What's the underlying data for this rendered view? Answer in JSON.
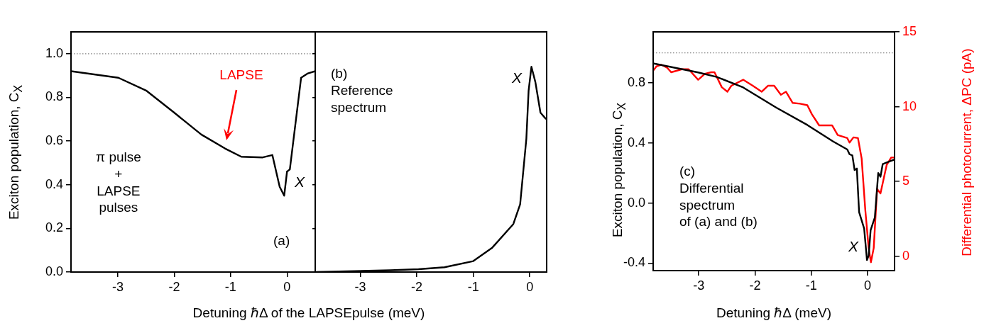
{
  "chart_data": [
    {
      "type": "line",
      "xlabel": "Detuning ℏΔ of the LAPSEpulse (meV)",
      "ylabel": "Exciton population, C$_{X}$",
      "xlim": [
        -3.83,
        0.5
      ],
      "ylim": [
        0,
        1.1
      ],
      "xticks": [
        -3,
        -2,
        -1,
        0
      ],
      "yticks": [
        {
          "value": 0,
          "label": "0.0"
        },
        {
          "value": 0.2,
          "label": "0.2"
        },
        {
          "value": 0.4,
          "label": "0.4"
        },
        {
          "value": 0.6,
          "label": "0.6"
        },
        {
          "value": 0.8,
          "label": "0.8"
        },
        {
          "value": 1,
          "label": "1.0"
        }
      ],
      "grid": false,
      "legend": false,
      "series": [
        {
          "color": "#000000",
          "x": [
            -3.83,
            -2.99,
            -2.49,
            -2.0,
            -1.52,
            -1.1,
            -0.81,
            -0.43,
            -0.26,
            -0.13,
            -0.05,
            0,
            0.05,
            0.25,
            0.37,
            0.5
          ],
          "values": [
            0.92,
            0.89,
            0.83,
            0.73,
            0.63,
            0.566,
            0.528,
            0.525,
            0.536,
            0.39,
            0.35,
            0.46,
            0.47,
            0.89,
            0.91,
            0.92
          ]
        }
      ],
      "ref_lines": [
        {
          "axis": "y",
          "value": 1,
          "line_style": "dotted",
          "color": "#808080"
        }
      ],
      "annotations": [
        "π pulse\n+\nLAPSE\npulses",
        "(a)",
        "LAPSE",
        "X"
      ]
    },
    {
      "type": "line",
      "xlim": [
        -3.8,
        0.3
      ],
      "ylim": [
        0,
        1.1
      ],
      "xticks": [
        -3,
        -2,
        -1,
        0
      ],
      "yticks": [
        0,
        0.2,
        0.4,
        0.6,
        0.8,
        1
      ],
      "tick_labels": "x",
      "grid": false,
      "legend": false,
      "series": [
        {
          "color": "#000000",
          "x": [
            -3.8,
            -2.47,
            -1.97,
            -1.51,
            -1.0,
            -0.67,
            -0.29,
            -0.17,
            -0.06,
            -0.02,
            0.03,
            0.1,
            0.19,
            0.29
          ],
          "values": [
            0.0,
            0.008,
            0.013,
            0.022,
            0.05,
            0.11,
            0.22,
            0.31,
            0.61,
            0.83,
            0.94,
            0.87,
            0.73,
            0.7
          ]
        }
      ],
      "annotations": [
        "(b)\nReference\nspectrum",
        "X"
      ]
    },
    {
      "type": "line",
      "xlabel": "Detuning ℏΔ  (meV)",
      "ylabel": "Exciton population, C$_{X}$",
      "y2label": "Differential photocurrent, ΔPC (pA)",
      "xlim": [
        -3.81,
        0.48
      ],
      "ylim": [
        -0.45,
        1.14
      ],
      "y2lim": [
        -0.96,
        15
      ],
      "xticks": [
        -3,
        -2,
        -1,
        0
      ],
      "yticks": [
        {
          "value": -0.4,
          "label": "-0.4"
        },
        {
          "value": 0,
          "label": "0.0"
        },
        {
          "value": 0.4,
          "label": "0.4"
        },
        {
          "value": 0.8,
          "label": "0.8"
        }
      ],
      "y2ticks": [
        0,
        5,
        10,
        15
      ],
      "grid": false,
      "legend": false,
      "series": [
        {
          "color": "#000000",
          "x": [
            -3.81,
            -3.01,
            -2.68,
            -2.21,
            -1.62,
            -1.07,
            -0.61,
            -0.36,
            -0.32,
            -0.27,
            -0.23,
            -0.19,
            -0.15,
            -0.06,
            -0.01,
            0.02,
            0.055,
            0.13,
            0.19,
            0.23,
            0.27,
            0.34,
            0.48
          ],
          "values": [
            0.93,
            0.87,
            0.84,
            0.77,
            0.635,
            0.52,
            0.41,
            0.357,
            0.325,
            0.317,
            0.22,
            0.23,
            -0.06,
            -0.17,
            -0.38,
            -0.35,
            -0.18,
            -0.095,
            0.2,
            0.175,
            0.26,
            0.27,
            0.29
          ]
        },
        {
          "color": "#ff0000",
          "axis": "y2",
          "x": [
            -3.81,
            -3.75,
            -3.66,
            -3.56,
            -3.49,
            -3.3,
            -3.18,
            -3.01,
            -2.89,
            -2.78,
            -2.72,
            -2.59,
            -2.49,
            -2.42,
            -2.21,
            -2.04,
            -1.88,
            -1.77,
            -1.66,
            -1.54,
            -1.45,
            -1.33,
            -1.2,
            -1.07,
            -0.99,
            -0.86,
            -0.63,
            -0.53,
            -0.36,
            -0.32,
            -0.25,
            -0.17,
            -0.105,
            -0.04,
            0.02,
            0.06,
            0.11,
            0.17,
            0.23,
            0.34,
            0.42,
            0.48
          ],
          "values": [
            12.4,
            12.7,
            12.8,
            12.6,
            12.3,
            12.5,
            12.5,
            11.8,
            12.2,
            12.3,
            12.3,
            11.3,
            11.0,
            11.4,
            11.8,
            11.4,
            11.0,
            11.4,
            11.4,
            10.8,
            11.0,
            10.25,
            10.2,
            10.1,
            9.5,
            8.75,
            8.75,
            8.1,
            7.9,
            7.6,
            7.95,
            7.9,
            6.55,
            3.1,
            0.55,
            -0.4,
            0.55,
            4.5,
            4.2,
            6.1,
            6.6,
            6.6
          ]
        }
      ],
      "ref_lines": [
        {
          "axis": "y",
          "value": 1,
          "line_style": "dotted",
          "color": "#808080"
        }
      ],
      "annotations": [
        "(c)\nDifferential\nspectrum\nof (a) and (b)",
        "X"
      ]
    }
  ]
}
